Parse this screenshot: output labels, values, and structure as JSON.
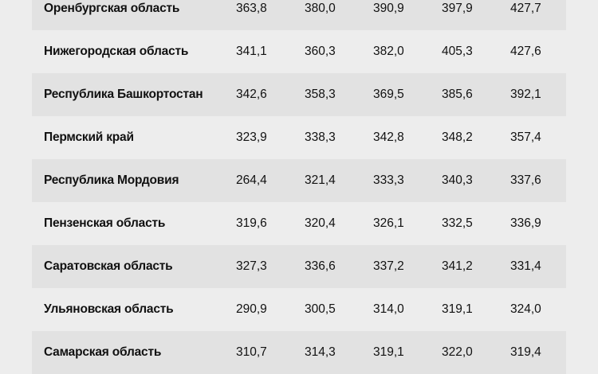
{
  "rows": [
    {
      "name": "Оренбургская область",
      "values": [
        "363,8",
        "380,0",
        "390,9",
        "397,9",
        "427,7"
      ]
    },
    {
      "name": "Нижегородская область",
      "values": [
        "341,1",
        "360,3",
        "382,0",
        "405,3",
        "427,6"
      ]
    },
    {
      "name": "Республика Башкортостан",
      "values": [
        "342,6",
        "358,3",
        "369,5",
        "385,6",
        "392,1"
      ]
    },
    {
      "name": "Пермский край",
      "values": [
        "323,9",
        "338,3",
        "342,8",
        "348,2",
        "357,4"
      ]
    },
    {
      "name": "Республика Мордовия",
      "values": [
        "264,4",
        "321,4",
        "333,3",
        "340,3",
        "337,6"
      ]
    },
    {
      "name": "Пензенская область",
      "values": [
        "319,6",
        "320,4",
        "326,1",
        "332,5",
        "336,9"
      ]
    },
    {
      "name": "Саратовская область",
      "values": [
        "327,3",
        "336,6",
        "337,2",
        "341,2",
        "331,4"
      ]
    },
    {
      "name": "Ульяновская область",
      "values": [
        "290,9",
        "300,5",
        "314,0",
        "319,1",
        "324,0"
      ]
    },
    {
      "name": "Самарская область",
      "values": [
        "310,7",
        "314,3",
        "319,1",
        "322,0",
        "319,4"
      ]
    }
  ]
}
